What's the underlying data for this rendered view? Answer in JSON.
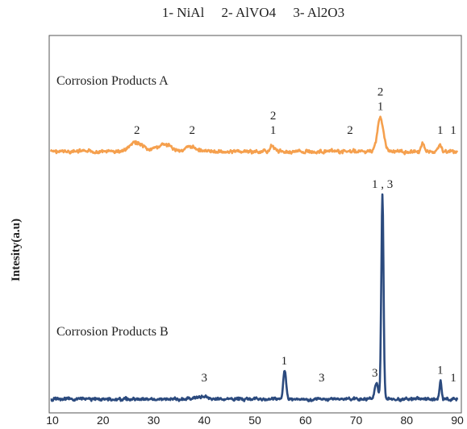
{
  "chart_data": {
    "type": "line",
    "legend_text": "1- NiAl     2- AlVO4     3- Al2O3",
    "ylabel": "Intesity(a.u)",
    "xlabel": "",
    "xlim": [
      10,
      90
    ],
    "x_ticks": [
      "10",
      "20",
      "30",
      "40",
      "50",
      "60",
      "70",
      "80",
      "90"
    ],
    "grid": false,
    "series": [
      {
        "name": "Corrosion Products A",
        "color": "#f5a04e",
        "baseline": 0.15,
        "peaks": [
          {
            "x": 26.5,
            "h": 0.08,
            "w": 1.2
          },
          {
            "x": 32.0,
            "h": 0.06,
            "w": 1.5
          },
          {
            "x": 37.5,
            "h": 0.04,
            "w": 1.2
          },
          {
            "x": 53.5,
            "h": 0.05,
            "w": 0.5
          },
          {
            "x": 74.8,
            "h": 0.3,
            "w": 0.6
          },
          {
            "x": 83.2,
            "h": 0.07,
            "w": 0.3
          },
          {
            "x": 86.5,
            "h": 0.05,
            "w": 0.4
          }
        ],
        "annotations": [
          {
            "x": 26.7,
            "lines": [
              "2"
            ]
          },
          {
            "x": 37.6,
            "lines": [
              "2"
            ]
          },
          {
            "x": 53.6,
            "lines": [
              "2",
              "1"
            ]
          },
          {
            "x": 68.8,
            "lines": [
              "2"
            ]
          },
          {
            "x": 74.8,
            "lines": [
              "2",
              "1"
            ]
          },
          {
            "x": 86.6,
            "lines": [
              "1"
            ]
          },
          {
            "x": 89.2,
            "lines": [
              "1"
            ]
          }
        ]
      },
      {
        "name": "Corrosion Products B",
        "color": "#2b4a7e",
        "baseline": 0.05,
        "peaks": [
          {
            "x": 39.5,
            "h": 0.03,
            "w": 1.2
          },
          {
            "x": 55.9,
            "h": 0.34,
            "w": 0.28
          },
          {
            "x": 74.0,
            "h": 0.2,
            "w": 0.35
          },
          {
            "x": 75.2,
            "h": 2.4,
            "w": 0.22
          },
          {
            "x": 86.7,
            "h": 0.22,
            "w": 0.2
          }
        ],
        "annotations": [
          {
            "x": 40.0,
            "lines": [
              "3"
            ]
          },
          {
            "x": 55.8,
            "lines": [
              "1"
            ]
          },
          {
            "x": 63.2,
            "lines": [
              "3"
            ]
          },
          {
            "x": 73.7,
            "lines": [
              "3"
            ]
          },
          {
            "x": 75.2,
            "lines": [
              "1 , 3"
            ]
          },
          {
            "x": 86.6,
            "lines": [
              "1"
            ]
          },
          {
            "x": 89.2,
            "lines": [
              "1"
            ]
          }
        ]
      }
    ]
  }
}
